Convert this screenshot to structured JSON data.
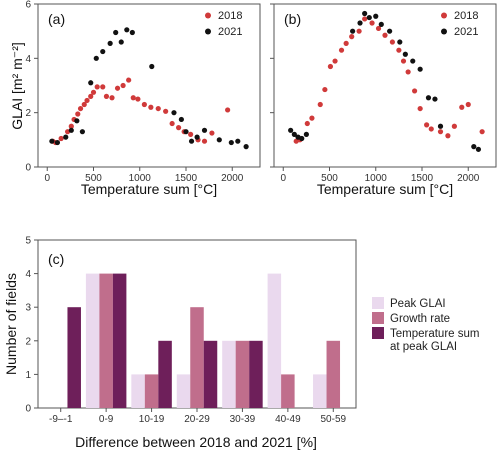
{
  "colors": {
    "year_2018": "#d03a3a",
    "year_2021": "#111111",
    "peak_glai": "#ead9ee",
    "growth_rate": "#c06e8c",
    "temp_sum_peak": "#6e1f5a",
    "axis": "#555555"
  },
  "chart_data": [
    {
      "panel": "(a)",
      "type": "scatter",
      "xlabel": "Temperature sum [°C]",
      "ylabel": "GLAI [m² m⁻²]",
      "xlim": [
        -100,
        2300
      ],
      "ylim": [
        0,
        6
      ],
      "xticks": [
        "0",
        "500",
        "1000",
        "1500",
        "2000"
      ],
      "yticks": [
        "0",
        "2",
        "4",
        "6"
      ],
      "legend_position": "top-right",
      "series": [
        {
          "name": "2018",
          "color_key": "year_2018",
          "points": [
            [
              60,
              0.95
            ],
            [
              90,
              0.9
            ],
            [
              150,
              1.05
            ],
            [
              220,
              1.3
            ],
            [
              260,
              1.5
            ],
            [
              290,
              1.75
            ],
            [
              330,
              1.95
            ],
            [
              360,
              2.15
            ],
            [
              400,
              2.3
            ],
            [
              430,
              2.45
            ],
            [
              470,
              2.6
            ],
            [
              500,
              2.75
            ],
            [
              540,
              2.95
            ],
            [
              600,
              2.95
            ],
            [
              640,
              2.6
            ],
            [
              700,
              2.55
            ],
            [
              760,
              2.9
            ],
            [
              820,
              3.0
            ],
            [
              880,
              3.2
            ],
            [
              930,
              2.55
            ],
            [
              980,
              2.5
            ],
            [
              1050,
              2.3
            ],
            [
              1120,
              2.2
            ],
            [
              1200,
              2.15
            ],
            [
              1280,
              2.05
            ],
            [
              1350,
              1.6
            ],
            [
              1420,
              1.45
            ],
            [
              1480,
              1.3
            ],
            [
              1550,
              1.2
            ],
            [
              1630,
              1.0
            ],
            [
              1700,
              0.95
            ],
            [
              1780,
              1.25
            ],
            [
              1950,
              2.1
            ]
          ]
        },
        {
          "name": "2021",
          "color_key": "year_2021",
          "points": [
            [
              50,
              0.95
            ],
            [
              110,
              0.9
            ],
            [
              200,
              1.1
            ],
            [
              260,
              1.35
            ],
            [
              320,
              1.7
            ],
            [
              380,
              1.3
            ],
            [
              470,
              3.1
            ],
            [
              530,
              4.0
            ],
            [
              600,
              4.25
            ],
            [
              680,
              4.55
            ],
            [
              740,
              4.95
            ],
            [
              800,
              4.6
            ],
            [
              860,
              5.05
            ],
            [
              920,
              4.95
            ],
            [
              1130,
              3.7
            ],
            [
              1370,
              2.0
            ],
            [
              1450,
              1.75
            ],
            [
              1500,
              1.3
            ],
            [
              1560,
              0.95
            ],
            [
              1620,
              1.1
            ],
            [
              1700,
              1.35
            ],
            [
              1860,
              1.0
            ],
            [
              1990,
              0.9
            ],
            [
              2060,
              0.95
            ],
            [
              2150,
              0.75
            ]
          ]
        }
      ]
    },
    {
      "panel": "(b)",
      "type": "scatter",
      "xlabel": "Temperature sum [°C]",
      "ylabel": "",
      "xlim": [
        -100,
        2300
      ],
      "ylim": [
        0,
        6
      ],
      "xticks": [
        "0",
        "500",
        "1000",
        "1500",
        "2000"
      ],
      "legend_position": "top-right",
      "series": [
        {
          "name": "2018",
          "color_key": "year_2018",
          "points": [
            [
              140,
              0.95
            ],
            [
              180,
              1.0
            ],
            [
              260,
              1.6
            ],
            [
              310,
              1.8
            ],
            [
              400,
              2.3
            ],
            [
              450,
              2.85
            ],
            [
              510,
              3.7
            ],
            [
              560,
              3.9
            ],
            [
              630,
              4.3
            ],
            [
              680,
              4.55
            ],
            [
              740,
              4.8
            ],
            [
              820,
              5.0
            ],
            [
              880,
              5.45
            ],
            [
              960,
              5.3
            ],
            [
              1030,
              5.1
            ],
            [
              1100,
              4.85
            ],
            [
              1180,
              4.6
            ],
            [
              1250,
              4.3
            ],
            [
              1300,
              3.9
            ],
            [
              1350,
              3.5
            ],
            [
              1420,
              2.8
            ],
            [
              1480,
              2.15
            ],
            [
              1550,
              1.55
            ],
            [
              1600,
              1.4
            ],
            [
              1700,
              1.3
            ],
            [
              1780,
              1.15
            ],
            [
              1850,
              1.5
            ],
            [
              1930,
              2.2
            ],
            [
              2000,
              2.3
            ],
            [
              2150,
              1.3
            ]
          ]
        },
        {
          "name": "2021",
          "color_key": "year_2021",
          "points": [
            [
              80,
              1.35
            ],
            [
              120,
              1.2
            ],
            [
              160,
              1.1
            ],
            [
              200,
              1.05
            ],
            [
              250,
              1.2
            ],
            [
              750,
              5.0
            ],
            [
              830,
              5.3
            ],
            [
              880,
              5.65
            ],
            [
              930,
              5.5
            ],
            [
              1000,
              5.55
            ],
            [
              1060,
              5.25
            ],
            [
              1150,
              5.0
            ],
            [
              1260,
              4.6
            ],
            [
              1320,
              4.15
            ],
            [
              1400,
              3.9
            ],
            [
              1480,
              3.6
            ],
            [
              1570,
              2.55
            ],
            [
              1640,
              2.5
            ],
            [
              1700,
              1.5
            ],
            [
              2060,
              0.75
            ],
            [
              2110,
              0.65
            ]
          ]
        }
      ]
    },
    {
      "panel": "(c)",
      "type": "bar",
      "xlabel": "Difference between 2018 and 2021 [%]",
      "ylabel": "Number of fields",
      "ylim": [
        0,
        5
      ],
      "yticks": [
        "0",
        "1",
        "2",
        "3",
        "4",
        "5"
      ],
      "categories": [
        "-9–-1",
        "0-9",
        "10-19",
        "20-29",
        "30-39",
        "40-49",
        "50-59"
      ],
      "legend_position": "right, outside plot",
      "series": [
        {
          "name": "Peak GLAI",
          "color_key": "peak_glai",
          "values": [
            0,
            4,
            1,
            1,
            2,
            4,
            1
          ]
        },
        {
          "name": "Growth rate",
          "color_key": "growth_rate",
          "values": [
            0,
            4,
            1,
            3,
            2,
            1,
            2
          ]
        },
        {
          "name": "Temperature sum at peak GLAI",
          "legend_lines": [
            "Temperature sum",
            "at peak GLAI"
          ],
          "color_key": "temp_sum_peak",
          "values": [
            3,
            4,
            2,
            2,
            2,
            0,
            0
          ]
        }
      ]
    }
  ]
}
